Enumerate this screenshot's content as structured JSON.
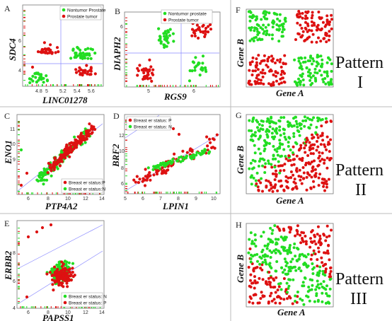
{
  "colors": {
    "green": "#22dd22",
    "red": "#dd1111",
    "refline": "#8888ff",
    "divider": "#bbbbbb",
    "frame": "#777777"
  },
  "panels": [
    {
      "id": "A",
      "letter": "A",
      "ylabel": "SDC4",
      "xlabel": "LINC01278",
      "xticks": [
        "4.8",
        "5",
        "5.2",
        "5.4",
        "5.6"
      ],
      "yticks": [
        "6",
        "4"
      ],
      "legend": [
        "Nontumor Prostate",
        "Prostate tumor"
      ]
    },
    {
      "id": "B",
      "letter": "B",
      "ylabel": "DIAPH2",
      "xlabel": "RGS9",
      "xticks": [
        "5",
        "6"
      ],
      "yticks": [
        "6"
      ],
      "legend": [
        "Nontumor prostate",
        "Prostate tumor"
      ]
    },
    {
      "id": "C",
      "letter": "C",
      "ylabel": "ENO1",
      "xlabel": "PTP4A2",
      "xticks": [
        "6",
        "8",
        "10",
        "12",
        "14"
      ],
      "yticks": [
        "11",
        "10",
        "9"
      ],
      "legend": [
        "Breast er status:P",
        "Breast er status:N"
      ]
    },
    {
      "id": "D",
      "letter": "D",
      "ylabel": "BRF2",
      "xlabel": "LPIN1",
      "xticks": [
        "5",
        "6",
        "7",
        "8",
        "9",
        "10"
      ],
      "yticks": [
        "12",
        "10",
        "8",
        "6"
      ],
      "legend": [
        "Breast er status: P",
        "Breast er status: N"
      ]
    },
    {
      "id": "E",
      "letter": "E",
      "ylabel": "ERBB2",
      "xlabel": "PAPSS1",
      "xticks": [
        "6",
        "8",
        "10",
        "12",
        "14"
      ],
      "yticks": [
        "8",
        "6",
        "4"
      ],
      "legend": [
        "Breast er status: N",
        "Breast er status: P"
      ]
    }
  ],
  "patterns": [
    {
      "id": "F",
      "letter": "F",
      "ylabel": "Gene B",
      "xlabel": "Gene A",
      "title_word": "Pattern",
      "roman": "I"
    },
    {
      "id": "G",
      "letter": "G",
      "ylabel": "Gene B",
      "xlabel": "Gene A",
      "title_word": "Pattern",
      "roman": "II"
    },
    {
      "id": "H",
      "letter": "H",
      "ylabel": "Gene B",
      "xlabel": "Gene A",
      "title_word": "Pattern",
      "roman": "III"
    }
  ],
  "chart_data": [
    {
      "type": "scatter",
      "panel": "A",
      "xlabel": "LINC01278",
      "ylabel": "SDC4",
      "series": [
        {
          "name": "Nontumor Prostate"
        },
        {
          "name": "Prostate tumor"
        }
      ]
    },
    {
      "type": "scatter",
      "panel": "B",
      "xlabel": "RGS9",
      "ylabel": "DIAPH2",
      "series": [
        {
          "name": "Nontumor prostate"
        },
        {
          "name": "Prostate tumor"
        }
      ]
    },
    {
      "type": "scatter",
      "panel": "C",
      "xlabel": "PTP4A2",
      "ylabel": "ENO1",
      "series": [
        {
          "name": "Breast er status:P"
        },
        {
          "name": "Breast er status:N"
        }
      ]
    },
    {
      "type": "scatter",
      "panel": "D",
      "xlabel": "LPIN1",
      "ylabel": "BRF2",
      "series": [
        {
          "name": "Breast er status: P"
        },
        {
          "name": "Breast er status: N"
        }
      ]
    },
    {
      "type": "scatter",
      "panel": "E",
      "xlabel": "PAPSS1",
      "ylabel": "ERBB2",
      "series": [
        {
          "name": "Breast er status: N"
        },
        {
          "name": "Breast er status: P"
        }
      ]
    },
    {
      "type": "scatter",
      "panel": "F",
      "xlabel": "Gene A",
      "ylabel": "Gene B",
      "pattern": "quadrant"
    },
    {
      "type": "scatter",
      "panel": "G",
      "xlabel": "Gene A",
      "ylabel": "Gene B",
      "pattern": "diagonal"
    },
    {
      "type": "scatter",
      "panel": "H",
      "xlabel": "Gene A",
      "ylabel": "Gene B",
      "pattern": "diagonal band"
    }
  ]
}
